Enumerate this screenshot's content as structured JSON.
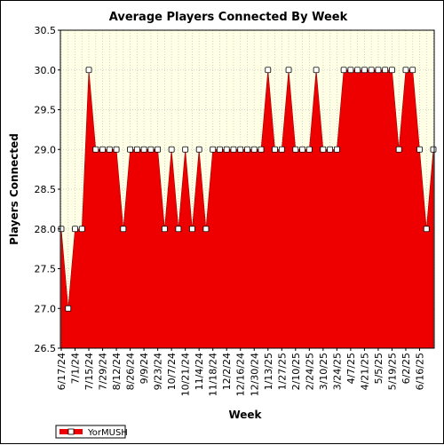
{
  "chart_data": {
    "type": "area",
    "title": "Average Players Connected By Week",
    "xlabel": "Week",
    "ylabel": "Players Connected",
    "ylim": [
      26.5,
      30.5
    ],
    "yticks": [
      "26.5",
      "27.0",
      "27.5",
      "28.0",
      "28.5",
      "29.0",
      "29.5",
      "30.0",
      "30.5"
    ],
    "grid": true,
    "legend_position": "bottom-left",
    "x_tick_labels": [
      "6/17/24",
      "7/1/24",
      "7/15/24",
      "7/29/24",
      "8/12/24",
      "8/26/24",
      "9/9/24",
      "9/23/24",
      "10/7/24",
      "10/21/24",
      "11/4/24",
      "11/18/24",
      "12/2/24",
      "12/16/24",
      "12/30/24",
      "1/13/25",
      "1/27/25",
      "2/10/25",
      "2/24/25",
      "3/10/25",
      "3/24/25",
      "4/7/25",
      "4/21/25",
      "5/5/25",
      "5/19/25",
      "6/2/25",
      "6/16/25"
    ],
    "series": [
      {
        "name": "YorMUSH",
        "color": "#ee0000",
        "values": [
          28,
          27,
          28,
          28,
          30,
          29,
          29,
          29,
          29,
          28,
          29,
          29,
          29,
          29,
          29,
          28,
          29,
          28,
          29,
          28,
          29,
          28,
          29,
          29,
          29,
          29,
          29,
          29,
          29,
          29,
          30,
          29,
          29,
          30,
          29,
          29,
          29,
          30,
          29,
          29,
          29,
          30,
          30,
          30,
          30,
          30,
          30,
          30,
          30,
          29,
          30,
          30,
          29,
          28,
          29
        ]
      }
    ]
  }
}
